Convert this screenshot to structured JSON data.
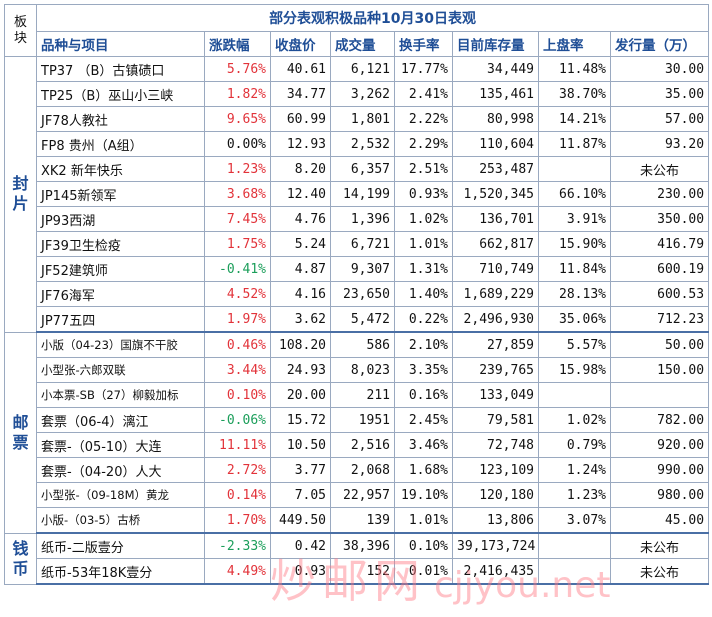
{
  "title": "部分表观积极品种10月30日表观",
  "corner_label": "板块",
  "headers": [
    "品种与项目",
    "涨跌幅",
    "收盘价",
    "成交量",
    "换手率",
    "目前库存量",
    "上盘率",
    "发行量（万）"
  ],
  "sections": [
    {
      "category": "封片",
      "rows": [
        {
          "name": "TP37 （B）古镇碛口",
          "change": "5.76%",
          "dir": "up",
          "close": "40.61",
          "volume": "6,121",
          "turnover": "17.77%",
          "stock": "34,449",
          "listing": "11.48%",
          "issue": "30.00"
        },
        {
          "name": "TP25（B）巫山小三峡",
          "change": "1.82%",
          "dir": "up",
          "close": "34.77",
          "volume": "3,262",
          "turnover": "2.41%",
          "stock": "135,461",
          "listing": "38.70%",
          "issue": "35.00"
        },
        {
          "name": "JF78人教社",
          "change": "9.65%",
          "dir": "up",
          "close": "60.99",
          "volume": "1,801",
          "turnover": "2.22%",
          "stock": "80,998",
          "listing": "14.21%",
          "issue": "57.00"
        },
        {
          "name": "FP8 贵州（A组）",
          "change": "0.00%",
          "dir": "flat",
          "close": "12.93",
          "volume": "2,532",
          "turnover": "2.29%",
          "stock": "110,604",
          "listing": "11.87%",
          "issue": "93.20"
        },
        {
          "name": "XK2 新年快乐",
          "change": "1.23%",
          "dir": "up",
          "close": "8.20",
          "volume": "6,357",
          "turnover": "2.51%",
          "stock": "253,487",
          "listing": "",
          "issue": "未公布"
        },
        {
          "name": "JP145新领军",
          "change": "3.68%",
          "dir": "up",
          "close": "12.40",
          "volume": "14,199",
          "turnover": "0.93%",
          "stock": "1,520,345",
          "listing": "66.10%",
          "issue": "230.00"
        },
        {
          "name": "JP93西湖",
          "change": "7.45%",
          "dir": "up",
          "close": "4.76",
          "volume": "1,396",
          "turnover": "1.02%",
          "stock": "136,701",
          "listing": "3.91%",
          "issue": "350.00"
        },
        {
          "name": "JF39卫生检疫",
          "change": "1.75%",
          "dir": "up",
          "close": "5.24",
          "volume": "6,721",
          "turnover": "1.01%",
          "stock": "662,817",
          "listing": "15.90%",
          "issue": "416.79"
        },
        {
          "name": "JF52建筑师",
          "change": "-0.41%",
          "dir": "down",
          "close": "4.87",
          "volume": "9,307",
          "turnover": "1.31%",
          "stock": "710,749",
          "listing": "11.84%",
          "issue": "600.19"
        },
        {
          "name": "JF76海军",
          "change": "4.52%",
          "dir": "up",
          "close": "4.16",
          "volume": "23,650",
          "turnover": "1.40%",
          "stock": "1,689,229",
          "listing": "28.13%",
          "issue": "600.53"
        },
        {
          "name": "JP77五四",
          "change": "1.97%",
          "dir": "up",
          "close": "3.62",
          "volume": "5,472",
          "turnover": "0.22%",
          "stock": "2,496,930",
          "listing": "35.06%",
          "issue": "712.23"
        }
      ]
    },
    {
      "category": "邮票",
      "rows": [
        {
          "name": "小版（04-23）国旗不干胶",
          "small": true,
          "change": "0.46%",
          "dir": "up",
          "close": "108.20",
          "volume": "586",
          "turnover": "2.10%",
          "stock": "27,859",
          "listing": "5.57%",
          "issue": "50.00"
        },
        {
          "name": "小型张-六郎双联",
          "small": true,
          "change": "3.44%",
          "dir": "up",
          "close": "24.93",
          "volume": "8,023",
          "turnover": "3.35%",
          "stock": "239,765",
          "listing": "15.98%",
          "issue": "150.00"
        },
        {
          "name": "小本票-SB（27）柳毅加标",
          "small": true,
          "change": "0.10%",
          "dir": "up",
          "close": "20.00",
          "volume": "211",
          "turnover": "0.16%",
          "stock": "133,049",
          "listing": "",
          "issue": ""
        },
        {
          "name": "套票（06-4）漓江",
          "change": "-0.06%",
          "dir": "down",
          "close": "15.72",
          "volume": "1951",
          "turnover": "2.45%",
          "stock": "79,581",
          "listing": "1.02%",
          "issue": "782.00"
        },
        {
          "name": "套票-（05-10）大连",
          "change": "11.11%",
          "dir": "up",
          "close": "10.50",
          "volume": "2,516",
          "turnover": "3.46%",
          "stock": "72,748",
          "listing": "0.79%",
          "issue": "920.00"
        },
        {
          "name": "套票-（04-20）人大",
          "change": "2.72%",
          "dir": "up",
          "close": "3.77",
          "volume": "2,068",
          "turnover": "1.68%",
          "stock": "123,109",
          "listing": "1.24%",
          "issue": "990.00"
        },
        {
          "name": "小型张-（09-18M）黄龙",
          "small": true,
          "change": "0.14%",
          "dir": "up",
          "close": "7.05",
          "volume": "22,957",
          "turnover": "19.10%",
          "stock": "120,180",
          "listing": "1.23%",
          "issue": "980.00"
        },
        {
          "name": "小版-（03-5）古桥",
          "small": true,
          "change": "1.70%",
          "dir": "up",
          "close": "449.50",
          "volume": "139",
          "turnover": "1.01%",
          "stock": "13,806",
          "listing": "3.07%",
          "issue": "45.00"
        }
      ]
    },
    {
      "category": "钱币",
      "rows": [
        {
          "name": "纸币-二版壹分",
          "change": "-2.33%",
          "dir": "down",
          "close": "0.42",
          "volume": "38,396",
          "turnover": "0.10%",
          "stock": "39,173,724",
          "listing": "",
          "issue": "未公布"
        },
        {
          "name": "纸币-53年18K壹分",
          "change": "4.49%",
          "dir": "up",
          "close": "0.93",
          "volume": "152",
          "turnover": "0.01%",
          "stock": "2,416,435",
          "listing": "",
          "issue": "未公布"
        }
      ]
    }
  ],
  "watermark": {
    "text": "炒邮网",
    "url": "cjjyou.net"
  },
  "colors": {
    "up": "#e2333a",
    "down": "#1b9e5a",
    "flat": "#111111",
    "header_text": "#1f4e96",
    "grid": "#9aa9c0"
  }
}
